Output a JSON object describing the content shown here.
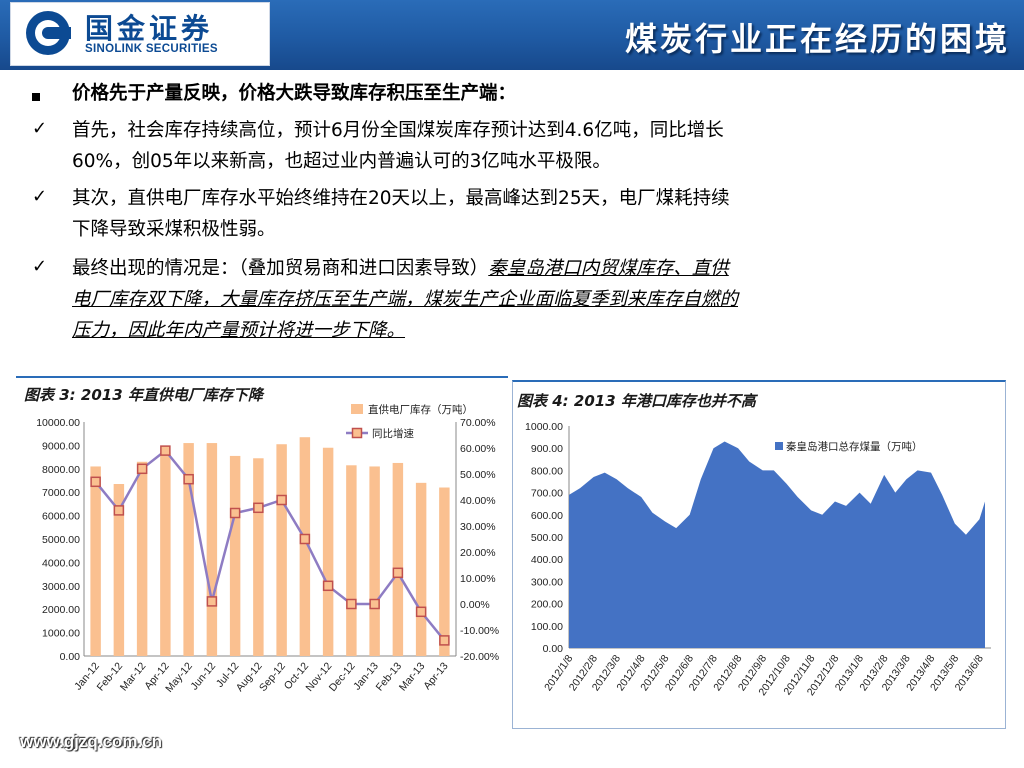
{
  "header": {
    "logo_cn": "国金证券",
    "logo_en": "SINOLINK SECURITIES",
    "title": "煤炭行业正在经历的困境"
  },
  "body": {
    "heading": "价格先于产量反映，价格大跌导致库存积压至生产端：",
    "p1_line1": "首先，社会库存持续高位，预计6月份全国煤炭库存预计达到4.6亿吨，同比增长",
    "p1_line2": "60%，创05年以来新高，也超过业内普遍认可的3亿吨水平极限。",
    "p2_line1": "其次，直供电厂库存水平始终维持在20天以上，最高峰达到25天，电厂煤耗持续",
    "p2_line2": "下降导致采煤积极性弱。",
    "p3_line1_plain": "最终出现的情况是：（叠加贸易商和进口因素导致）",
    "p3_line1_ul": "秦皇岛港口内贸煤库存、直供",
    "p3_line2": "电厂库存双下降，大量库存挤压至生产端，煤炭生产企业面临夏季到来库存自燃的",
    "p3_line3": "压力，因此年内产量预计将进一步下降。"
  },
  "footer": {
    "url": "www.gjzq.com.cn"
  },
  "colors": {
    "header_blue": "#1f5aa3",
    "bar_orange": "#fac090",
    "line_purple": "#8e7cc3",
    "marker_red": "#c0504d",
    "area_blue": "#4472c4"
  },
  "chart_data": [
    {
      "type": "bar",
      "title": "图表 3:  2013 年直供电厂库存下降",
      "categories": [
        "Jan-12",
        "Feb-12",
        "Mar-12",
        "Apr-12",
        "May-12",
        "Jun-12",
        "Jul-12",
        "Aug-12",
        "Sep-12",
        "Oct-12",
        "Nov-12",
        "Dec-12",
        "Jan-13",
        "Feb-13",
        "Mar-13",
        "Apr-13"
      ],
      "series": [
        {
          "name": "直供电厂库存（万吨）",
          "axis": "left",
          "type": "bar",
          "values": [
            8100,
            7350,
            8300,
            8700,
            9100,
            9100,
            8550,
            8450,
            9050,
            9350,
            8900,
            8150,
            8100,
            8250,
            7400,
            7200
          ]
        },
        {
          "name": "同比增速",
          "axis": "right",
          "type": "line",
          "values": [
            0.47,
            0.36,
            0.52,
            0.59,
            0.48,
            0.01,
            0.35,
            0.37,
            0.4,
            0.25,
            0.07,
            0.0,
            0.0,
            0.12,
            -0.03,
            -0.14
          ]
        }
      ],
      "y_left": {
        "min": 0,
        "max": 10000,
        "ticks": [
          "0.00",
          "1000.00",
          "2000.00",
          "3000.00",
          "4000.00",
          "5000.00",
          "6000.00",
          "7000.00",
          "8000.00",
          "9000.00",
          "10000.00"
        ]
      },
      "y_right": {
        "min": -0.2,
        "max": 0.7,
        "ticks": [
          "-20.00%",
          "-10.00%",
          "0.00%",
          "10.00%",
          "20.00%",
          "30.00%",
          "40.00%",
          "50.00%",
          "60.00%",
          "70.00%"
        ]
      },
      "legend": "top-right"
    },
    {
      "type": "area",
      "title": "图表 4:  2013 年港口库存也并不高",
      "series_name": "秦皇岛港口总存煤量（万吨）",
      "x_ticks": [
        "2012/1/8",
        "2012/2/8",
        "2012/3/8",
        "2012/4/8",
        "2012/5/8",
        "2012/6/8",
        "2012/7/8",
        "2012/8/8",
        "2012/9/8",
        "2012/10/8",
        "2012/11/8",
        "2012/12/8",
        "2013/1/8",
        "2013/2/8",
        "2013/3/8",
        "2013/4/8",
        "2013/5/8",
        "2013/6/8"
      ],
      "x": [
        "2012/1/8",
        "2012/1/22",
        "2012/2/8",
        "2012/2/22",
        "2012/3/8",
        "2012/3/22",
        "2012/4/8",
        "2012/4/22",
        "2012/5/8",
        "2012/5/22",
        "2012/6/8",
        "2012/6/22",
        "2012/7/8",
        "2012/7/22",
        "2012/8/8",
        "2012/8/22",
        "2012/9/8",
        "2012/9/22",
        "2012/10/8",
        "2012/10/22",
        "2012/11/8",
        "2012/11/22",
        "2012/12/8",
        "2012/12/22",
        "2013/1/8",
        "2013/1/22",
        "2013/2/8",
        "2013/2/22",
        "2013/3/8",
        "2013/3/22",
        "2013/4/8",
        "2013/4/22",
        "2013/5/8",
        "2013/5/22",
        "2013/6/8",
        "2013/6/15"
      ],
      "values": [
        690,
        720,
        770,
        790,
        760,
        720,
        680,
        610,
        570,
        540,
        600,
        760,
        900,
        930,
        900,
        840,
        800,
        800,
        740,
        680,
        620,
        600,
        660,
        640,
        700,
        650,
        780,
        700,
        760,
        800,
        790,
        690,
        560,
        510,
        580,
        660
      ],
      "y": {
        "min": 0,
        "max": 1000,
        "ticks": [
          "0.00",
          "100.00",
          "200.00",
          "300.00",
          "400.00",
          "500.00",
          "600.00",
          "700.00",
          "800.00",
          "900.00",
          "1000.00"
        ]
      },
      "legend": "top-right"
    }
  ]
}
